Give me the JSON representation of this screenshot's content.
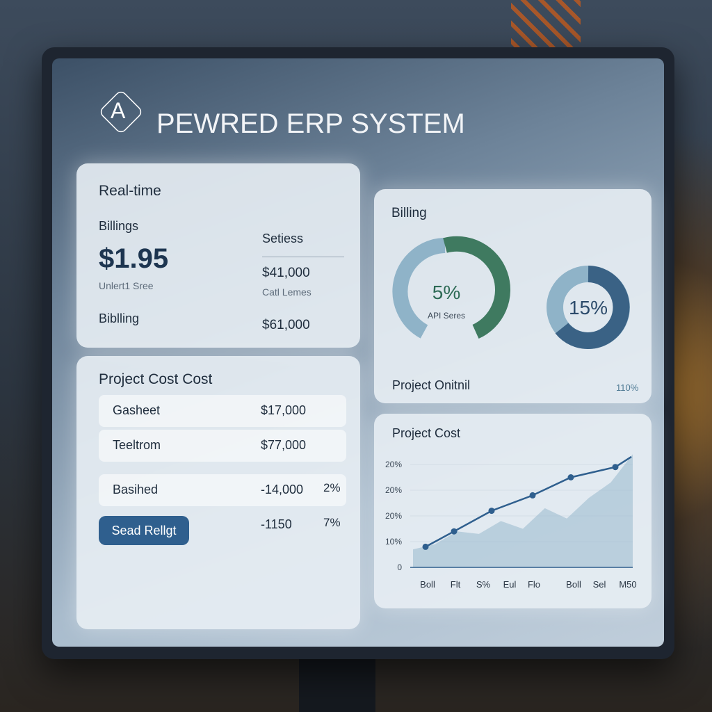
{
  "header": {
    "logo": "A",
    "title": "PEWRED ERP SYSTEM"
  },
  "realtime": {
    "title": "Real-time",
    "billings_label": "Billings",
    "billings_value": "$1.95",
    "billings_note": "Unlert1 Sree",
    "settings_label": "Setiess",
    "settings_value": "$41,000",
    "settings_note": "Catl Lemes",
    "billing_label": "Biblling",
    "billing_value": "$61,000"
  },
  "project_list": {
    "title": "Project Cost Cost",
    "rows": [
      {
        "name": "Gasheet",
        "amount": "$17,000"
      },
      {
        "name": "Teeltrom",
        "amount": "$77,000"
      },
      {
        "name": "Basihed",
        "amount": "-14,000",
        "percent": "2%"
      },
      {
        "amount": "-1150",
        "percent": "7%"
      }
    ],
    "button": "Sead Rellgt"
  },
  "billing": {
    "title": "Billing",
    "donuts": [
      {
        "label": "5%",
        "note": "API Seres"
      },
      {
        "label": "15%"
      }
    ],
    "footer_left": "Project Onitnil",
    "footer_right": "110%"
  },
  "line_chart": {
    "title": "Project Cost",
    "y_labels": [
      "20%",
      "20%",
      "20%",
      "10%",
      "0"
    ],
    "x_labels": [
      "Boll",
      "Flt",
      "S%",
      "Eul",
      "Flo",
      "Boll",
      "Sel",
      "M50"
    ],
    "line": [
      8,
      14,
      22,
      28,
      35,
      39,
      43
    ],
    "area": [
      7,
      9,
      14,
      13,
      18,
      15,
      23,
      19,
      27,
      33,
      44
    ]
  }
}
